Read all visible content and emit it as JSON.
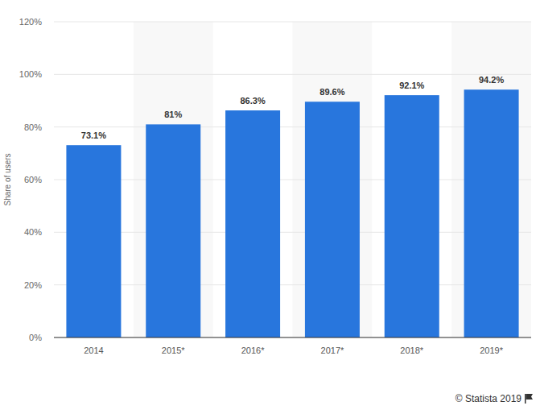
{
  "chart_data": {
    "type": "bar",
    "y_label": "Share of users",
    "categories": [
      "2014",
      "2015*",
      "2016*",
      "2017*",
      "2018*",
      "2019*"
    ],
    "values": [
      73.1,
      81,
      86.3,
      89.6,
      92.1,
      94.2
    ],
    "value_labels": [
      "73.1%",
      "81%",
      "86.3%",
      "89.6%",
      "92.1%",
      "94.2%"
    ],
    "color": "#2876dd",
    "ylim": [
      0,
      120
    ],
    "yticks": [
      {
        "value": 0,
        "label": "0%"
      },
      {
        "value": 20,
        "label": "20%"
      },
      {
        "value": 40,
        "label": "40%"
      },
      {
        "value": 60,
        "label": "60%"
      },
      {
        "value": 80,
        "label": "80%"
      },
      {
        "value": 100,
        "label": "100%"
      },
      {
        "value": 120,
        "label": "120%"
      }
    ],
    "grid": true,
    "data_labels": true,
    "source": "© Statista 2019"
  }
}
